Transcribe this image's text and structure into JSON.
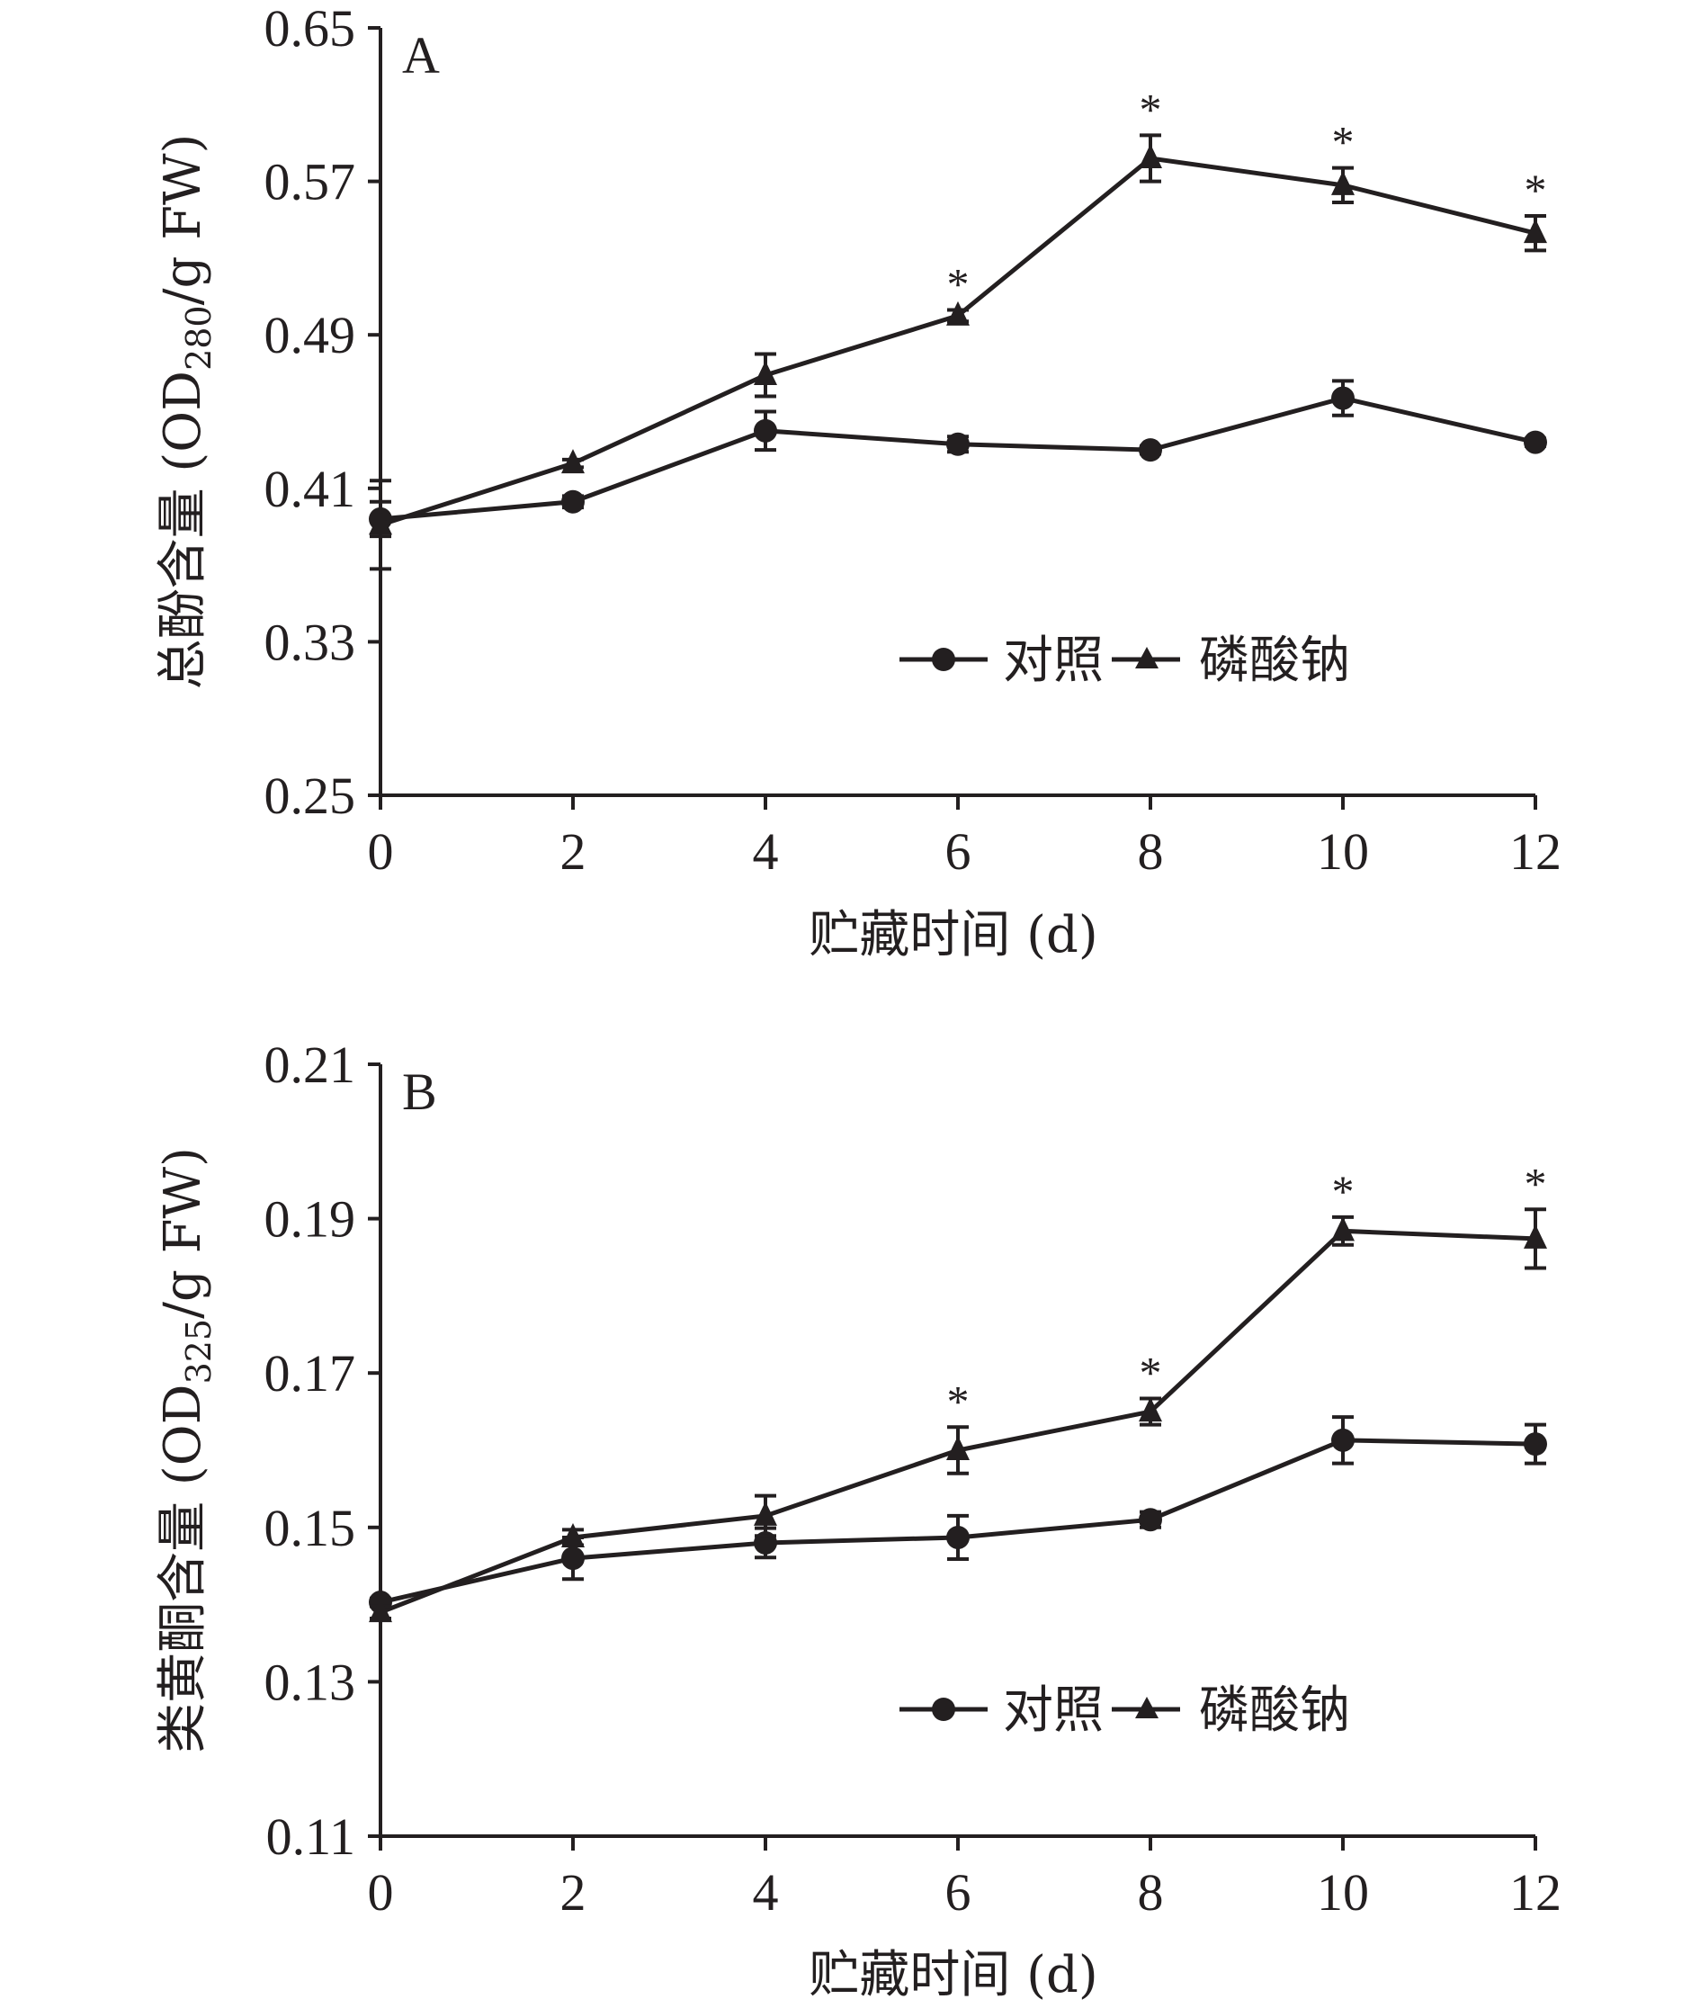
{
  "chart_data": [
    {
      "type": "line",
      "panel_label": "A",
      "title": "",
      "xlabel": "贮藏时间 (d)",
      "ylabel": {
        "prefix": "总酚含量 (OD",
        "subscript": "280",
        "suffix": "/g FW)"
      },
      "x": [
        0,
        2,
        4,
        6,
        8,
        10,
        12
      ],
      "xticks": [
        "0",
        "2",
        "4",
        "6",
        "8",
        "10",
        "12"
      ],
      "xlim": [
        0,
        12
      ],
      "ylim": [
        0.25,
        0.65
      ],
      "yticks": [
        "0.25",
        "0.33",
        "0.41",
        "0.49",
        "0.57",
        "0.65"
      ],
      "grid": false,
      "legend_position": "lower-right",
      "series": [
        {
          "name": "对照",
          "marker": "circle",
          "values": [
            0.394,
            0.403,
            0.44,
            0.433,
            0.43,
            0.457,
            0.434
          ],
          "errors": [
            0.009,
            0.003,
            0.01,
            0.004,
            0.002,
            0.009,
            0.002
          ]
        },
        {
          "name": "磷酸钠",
          "marker": "triangle",
          "values": [
            0.391,
            0.423,
            0.469,
            0.5,
            0.582,
            0.568,
            0.543
          ],
          "errors": [
            0.023,
            0.002,
            0.011,
            0.003,
            0.012,
            0.009,
            0.009
          ]
        }
      ],
      "significance": [
        {
          "x": 6,
          "label": "*"
        },
        {
          "x": 8,
          "label": "*"
        },
        {
          "x": 10,
          "label": "*"
        },
        {
          "x": 12,
          "label": "*"
        }
      ],
      "colors": {
        "line": "#231f20"
      }
    },
    {
      "type": "line",
      "panel_label": "B",
      "title": "",
      "xlabel": "贮藏时间 (d)",
      "ylabel": {
        "prefix": "类黄酮含量 (OD",
        "subscript": "325",
        "suffix": "/g FW)"
      },
      "x": [
        0,
        2,
        4,
        6,
        8,
        10,
        12
      ],
      "xticks": [
        "0",
        "2",
        "4",
        "6",
        "8",
        "10",
        "12"
      ],
      "xlim": [
        0,
        12
      ],
      "ylim": [
        0.11,
        0.21
      ],
      "yticks": [
        "0.11",
        "0.13",
        "0.15",
        "0.17",
        "0.19",
        "0.21"
      ],
      "grid": false,
      "legend_position": "lower-right",
      "series": [
        {
          "name": "对照",
          "marker": "circle",
          "values": [
            0.1403,
            0.146,
            0.148,
            0.1487,
            0.151,
            0.1613,
            0.1608
          ],
          "errors": [
            0.0005,
            0.0027,
            0.0019,
            0.0028,
            0.001,
            0.003,
            0.0025
          ]
        },
        {
          "name": "磷酸钠",
          "marker": "triangle",
          "values": [
            0.139,
            0.1487,
            0.1515,
            0.16,
            0.165,
            0.1884,
            0.1874
          ],
          "errors": [
            0.0008,
            0.001,
            0.0026,
            0.003,
            0.0017,
            0.0018,
            0.0038
          ]
        }
      ],
      "significance": [
        {
          "x": 6,
          "label": "*"
        },
        {
          "x": 8,
          "label": "*"
        },
        {
          "x": 10,
          "label": "*"
        },
        {
          "x": 12,
          "label": "*"
        }
      ],
      "colors": {
        "line": "#231f20"
      }
    }
  ]
}
